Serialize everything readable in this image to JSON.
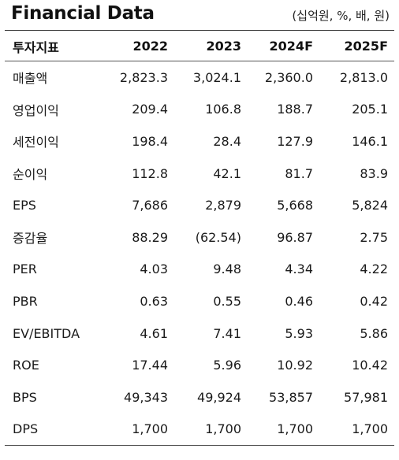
{
  "header": {
    "title": "Financial Data",
    "unit": "(십억원, %, 배, 원)"
  },
  "table": {
    "columns": [
      "투자지표",
      "2022",
      "2023",
      "2024F",
      "2025F"
    ],
    "rows": [
      [
        "매출액",
        "2,823.3",
        "3,024.1",
        "2,360.0",
        "2,813.0"
      ],
      [
        "영업이익",
        "209.4",
        "106.8",
        "188.7",
        "205.1"
      ],
      [
        "세전이익",
        "198.4",
        "28.4",
        "127.9",
        "146.1"
      ],
      [
        "순이익",
        "112.8",
        "42.1",
        "81.7",
        "83.9"
      ],
      [
        "EPS",
        "7,686",
        "2,879",
        "5,668",
        "5,824"
      ],
      [
        "증감율",
        "88.29",
        "(62.54)",
        "96.87",
        "2.75"
      ],
      [
        "PER",
        "4.03",
        "9.48",
        "4.34",
        "4.22"
      ],
      [
        "PBR",
        "0.63",
        "0.55",
        "0.46",
        "0.42"
      ],
      [
        "EV/EBITDA",
        "4.61",
        "7.41",
        "5.93",
        "5.86"
      ],
      [
        "ROE",
        "17.44",
        "5.96",
        "10.92",
        "10.42"
      ],
      [
        "BPS",
        "49,343",
        "49,924",
        "53,857",
        "57,981"
      ],
      [
        "DPS",
        "1,700",
        "1,700",
        "1,700",
        "1,700"
      ]
    ]
  }
}
